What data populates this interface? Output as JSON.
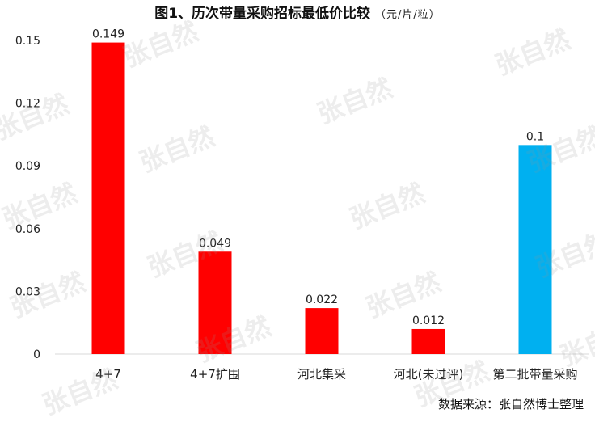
{
  "title": "图1、历次带量采购招标最低价比较",
  "unit": "（元/片/粒）",
  "source": "数据来源：张自然博士整理",
  "watermark": "张自然",
  "chart_data": {
    "type": "bar",
    "title": "图1、历次带量采购招标最低价比较",
    "unit": "（元/片/粒）",
    "categories": [
      "4+7",
      "4+7扩围",
      "河北集采",
      "河北(未过评)",
      "第二批带量采购"
    ],
    "values": [
      0.149,
      0.049,
      0.022,
      0.012,
      0.1
    ],
    "data_labels": [
      "0.149",
      "0.049",
      "0.022",
      "0.012",
      "0.1"
    ],
    "colors": [
      "#ff0000",
      "#ff0000",
      "#ff0000",
      "#ff0000",
      "#00b0f0"
    ],
    "yticks": [
      "0",
      "0.03",
      "0.06",
      "0.09",
      "0.12",
      "0.15"
    ],
    "ylim": [
      0,
      0.15
    ],
    "xlabel": "",
    "ylabel": "",
    "grid": false,
    "legend": "none"
  }
}
